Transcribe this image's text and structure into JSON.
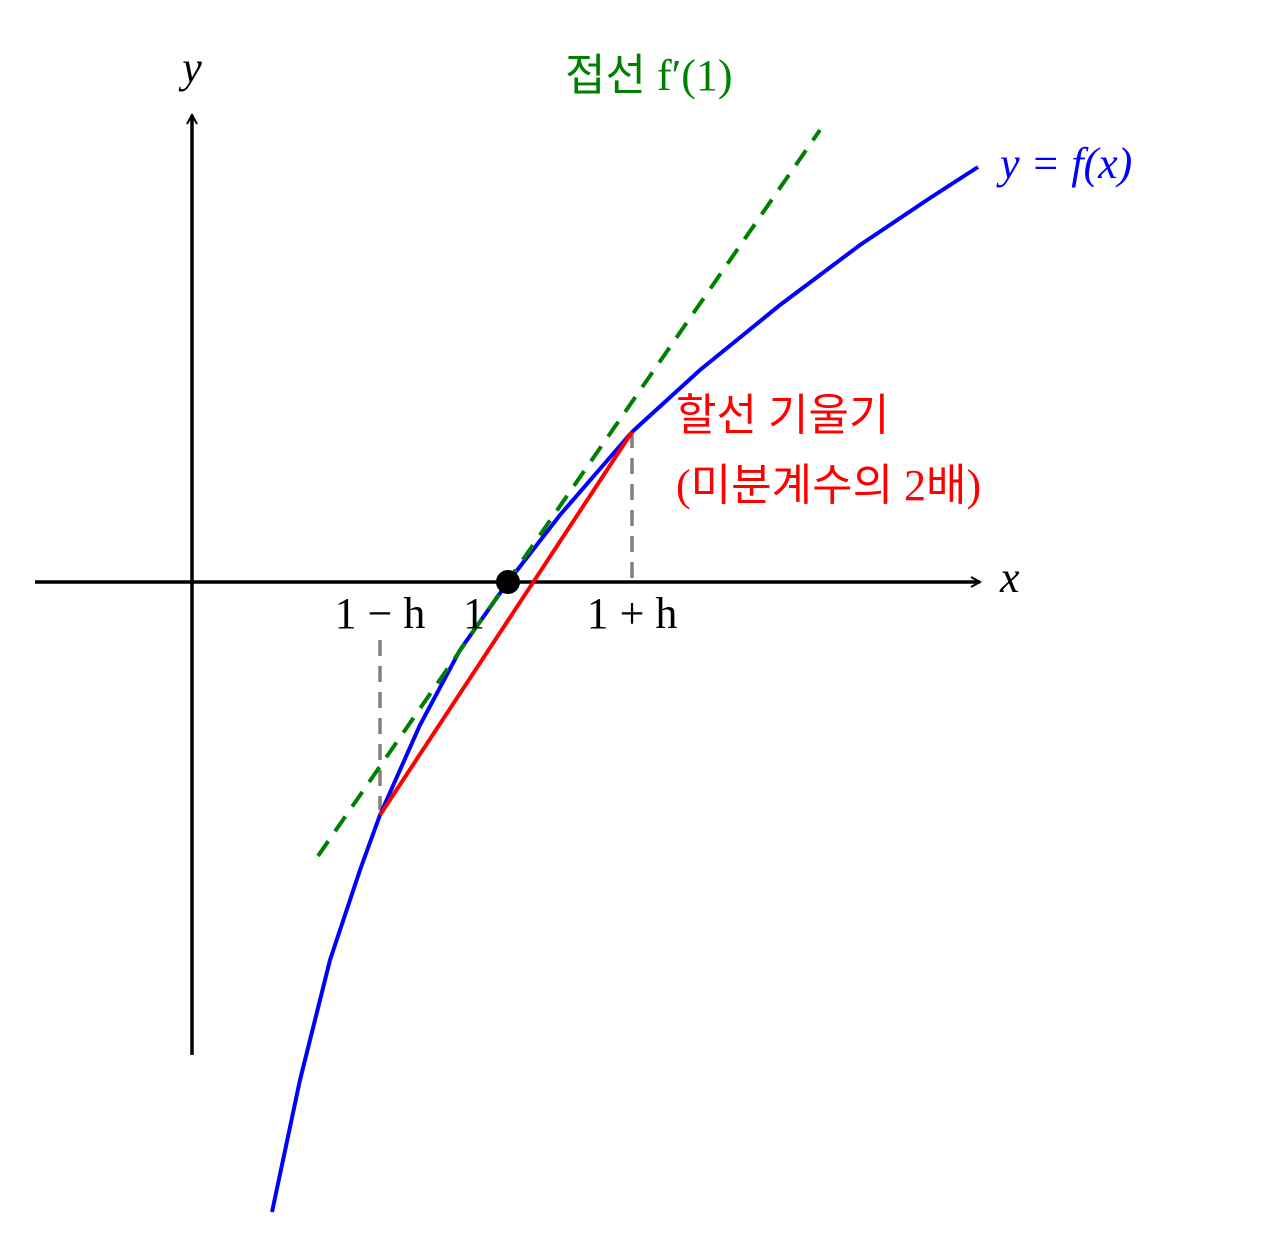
{
  "axes": {
    "y_label": "y",
    "x_label": "x"
  },
  "tangent_label": "접선 f′(1)",
  "curve_label": "y = f(x)",
  "secant_label": {
    "line1": "할선 기울기",
    "line2": "(미분계수의 2배)"
  },
  "tick_labels": {
    "left": "1 − h",
    "center": "1",
    "right": "1 + h"
  }
}
